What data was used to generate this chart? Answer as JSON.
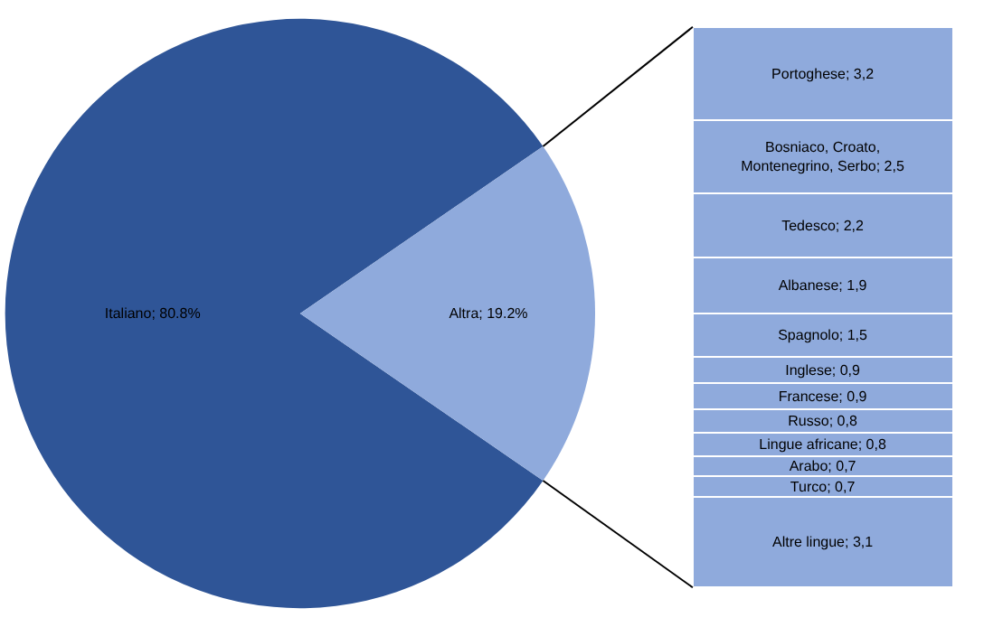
{
  "chart_data": [
    {
      "type": "pie",
      "categories": [
        "Italiano; 80.8%",
        "Altra; 19.2%"
      ],
      "values": [
        80.8,
        19.2
      ],
      "colors": [
        "#2f5597",
        "#8faadc"
      ]
    },
    {
      "type": "bar",
      "stacked": true,
      "categories": [
        null
      ],
      "tick_labels": false,
      "series": [
        {
          "color": "#8faadc",
          "values": [
            3.1
          ],
          "value_labels": [
            "Altre lingue; 3,1"
          ]
        },
        {
          "color": "#8faadc",
          "values": [
            0.7
          ],
          "value_labels": [
            "Turco; 0,7"
          ]
        },
        {
          "color": "#8faadc",
          "values": [
            0.7
          ],
          "value_labels": [
            "Arabo; 0,7"
          ]
        },
        {
          "color": "#8faadc",
          "values": [
            0.8
          ],
          "value_labels": [
            "Lingue africane; 0,8"
          ]
        },
        {
          "color": "#8faadc",
          "values": [
            0.8
          ],
          "value_labels": [
            "Russo; 0,8"
          ]
        },
        {
          "color": "#8faadc",
          "values": [
            0.9
          ],
          "value_labels": [
            "Francese; 0,9"
          ]
        },
        {
          "color": "#8faadc",
          "values": [
            0.9
          ],
          "value_labels": [
            "Inglese; 0,9"
          ]
        },
        {
          "color": "#8faadc",
          "values": [
            1.5
          ],
          "value_labels": [
            "Spagnolo; 1,5"
          ]
        },
        {
          "color": "#8faadc",
          "values": [
            1.9
          ],
          "value_labels": [
            "Albanese; 1,9"
          ]
        },
        {
          "color": "#8faadc",
          "values": [
            2.2
          ],
          "value_labels": [
            "Tedesco; 2,2"
          ]
        },
        {
          "color": "#8faadc",
          "values": [
            2.5
          ],
          "value_labels": [
            "Bosniaco, Croato, Montenegrino, Serbo; 2,5"
          ]
        },
        {
          "color": "#8faadc",
          "values": [
            3.2
          ],
          "value_labels": [
            "Portoghese; 3,2"
          ]
        }
      ]
    }
  ]
}
